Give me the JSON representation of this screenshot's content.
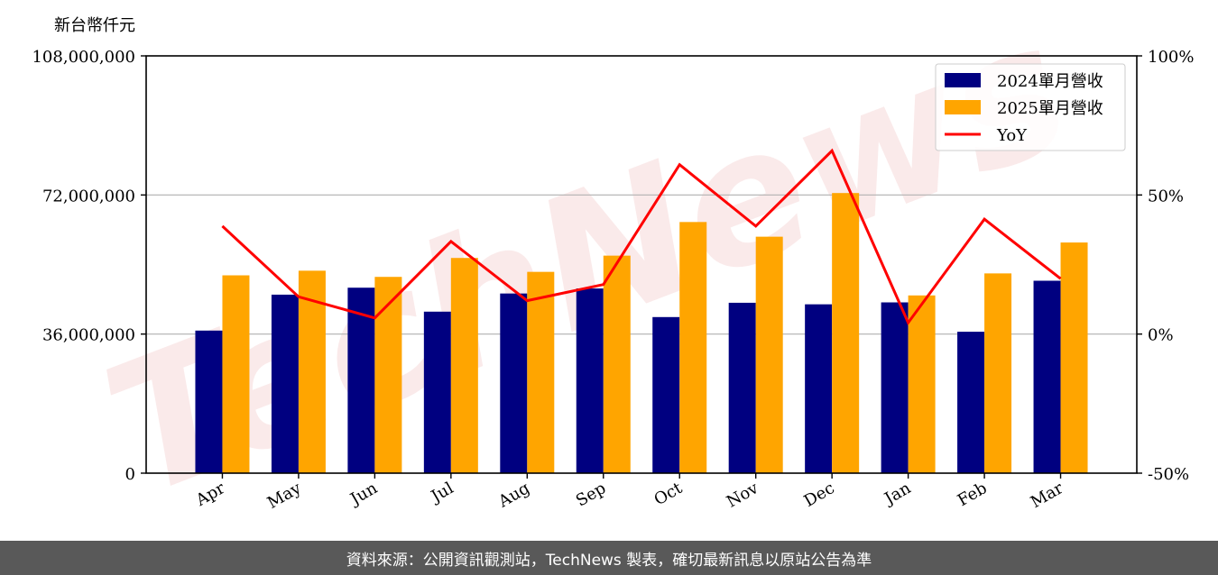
{
  "chart_data": {
    "type": "bar",
    "unit_label": "新台幣仟元",
    "categories": [
      "Apr",
      "May",
      "Jun",
      "Jul",
      "Aug",
      "Sep",
      "Oct",
      "Nov",
      "Dec",
      "Jan",
      "Feb",
      "Mar"
    ],
    "series": [
      {
        "name": "2024單月營收",
        "type": "bar",
        "color": "#000080",
        "values": [
          36900000,
          46200000,
          48000000,
          41800000,
          46500000,
          47800000,
          40400000,
          44100000,
          43700000,
          44200000,
          36600000,
          49800000
        ]
      },
      {
        "name": "2025單月營收",
        "type": "bar",
        "color": "#FFA500",
        "values": [
          51200000,
          52400000,
          50800000,
          55700000,
          52100000,
          56300000,
          65000000,
          61200000,
          72500000,
          46000000,
          51700000,
          59700000
        ]
      },
      {
        "name": "YoY",
        "type": "line",
        "axis": "right",
        "color": "#ff0000",
        "values": [
          38.8,
          13.4,
          5.8,
          33.3,
          12.0,
          17.8,
          60.9,
          38.8,
          65.9,
          4.1,
          41.3,
          19.9
        ]
      }
    ],
    "ylim": [
      0,
      108000000
    ],
    "y_ticks": [
      0,
      36000000,
      72000000,
      108000000
    ],
    "y_tick_labels": [
      "0",
      "36,000,000",
      "72,000,000",
      "108,000,000"
    ],
    "y2lim": [
      -50,
      100
    ],
    "y2_ticks": [
      -50,
      0,
      50,
      100
    ],
    "y2_tick_labels": [
      "-50%",
      "0%",
      "50%",
      "100%"
    ],
    "grid": "horizontal",
    "legend_position": "top-right",
    "watermark": "TechNews"
  },
  "footer": {
    "source_text": "資料來源：公開資訊觀測站，TechNews 製表，確切最新訊息以原站公告為準"
  }
}
